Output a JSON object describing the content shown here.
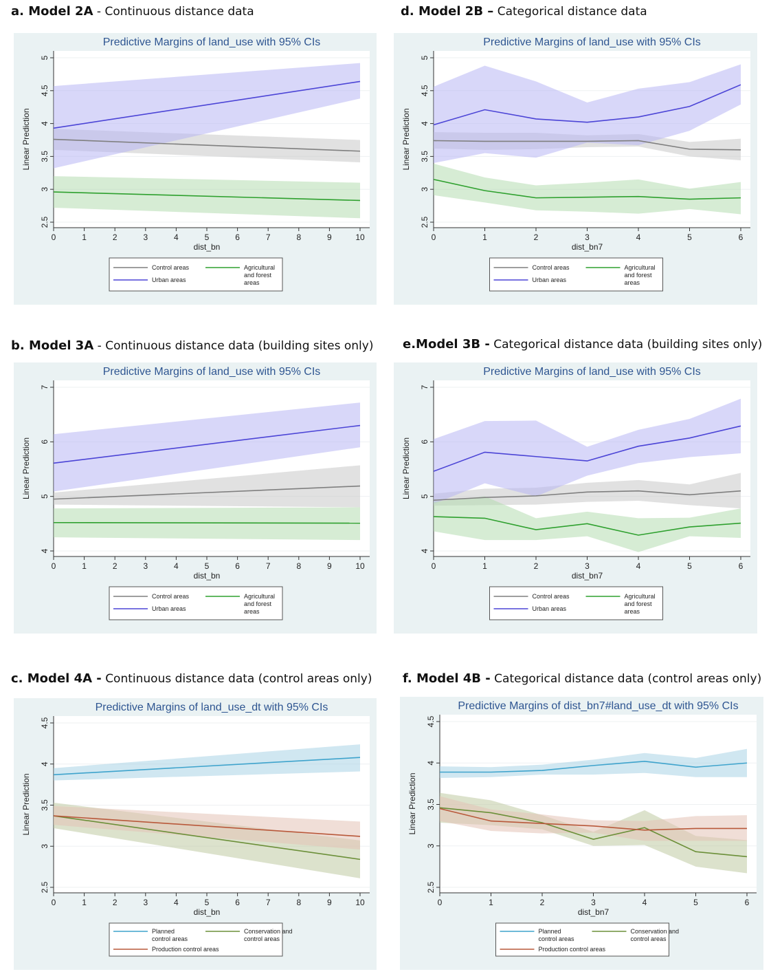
{
  "panels": [
    {
      "caption_label": "a. Model 2A",
      "caption_text": "- Continuous distance data",
      "chart_data": {
        "type": "line",
        "title": "Predictive Margins of land_use with 95% CIs",
        "xlabel": "dist_bn",
        "ylabel": "Linear Prediction",
        "x": [
          0,
          10
        ],
        "xticks": [
          "0",
          "1",
          "2",
          "3",
          "4",
          "5",
          "6",
          "7",
          "8",
          "9",
          "10"
        ],
        "xlim": [
          0,
          10
        ],
        "yticks": [
          "2.5",
          "3",
          "3.5",
          "4",
          "4.5",
          "5"
        ],
        "ylim": [
          2.5,
          5
        ],
        "series": [
          {
            "name": "Control areas",
            "color": "#7f7f7f",
            "band": "#c8c8c8",
            "values": [
              3.76,
              3.58
            ],
            "lower": [
              3.6,
              3.41
            ],
            "upper": [
              3.92,
              3.75
            ]
          },
          {
            "name": "Urban areas",
            "color": "#4b44d6",
            "band": "#b8b6f4",
            "values": [
              3.93,
              4.64
            ],
            "lower": [
              3.32,
              4.38
            ],
            "upper": [
              4.57,
              4.92
            ]
          },
          {
            "name": "Agricultural and forest areas",
            "color": "#2ea02e",
            "band": "#b5dcb0",
            "values": [
              2.96,
              2.83
            ],
            "lower": [
              2.72,
              2.56
            ],
            "upper": [
              3.2,
              3.1
            ]
          }
        ]
      },
      "legend": [
        {
          "label": "Control areas",
          "color": "#7f7f7f"
        },
        {
          "label": "Agricultural and forest areas",
          "color": "#2ea02e"
        },
        {
          "label": "Urban areas",
          "color": "#4b44d6"
        }
      ]
    },
    {
      "caption_label": "d. Model 2B –",
      "caption_text": "Categorical distance data",
      "chart_data": {
        "type": "line",
        "title": "Predictive Margins of land_use with 95% CIs",
        "xlabel": "dist_bn7",
        "ylabel": "Linear Prediction",
        "x": [
          0,
          1,
          2,
          3,
          4,
          5,
          6
        ],
        "xticks": [
          "0",
          "1",
          "2",
          "3",
          "4",
          "5",
          "6"
        ],
        "xlim": [
          0,
          6
        ],
        "yticks": [
          "2.5",
          "3",
          "3.5",
          "4",
          "4.5",
          "5"
        ],
        "ylim": [
          2.5,
          5
        ],
        "series": [
          {
            "name": "Control areas",
            "color": "#7f7f7f",
            "band": "#c8c8c8",
            "values": [
              3.74,
              3.73,
              3.73,
              3.73,
              3.74,
              3.61,
              3.6
            ],
            "lower": [
              3.62,
              3.6,
              3.61,
              3.64,
              3.65,
              3.5,
              3.44
            ],
            "upper": [
              3.87,
              3.86,
              3.86,
              3.82,
              3.84,
              3.72,
              3.77
            ]
          },
          {
            "name": "Urban areas",
            "color": "#4b44d6",
            "band": "#b8b6f4",
            "values": [
              3.98,
              4.21,
              4.07,
              4.02,
              4.1,
              4.26,
              4.59
            ],
            "lower": [
              3.4,
              3.55,
              3.48,
              3.71,
              3.67,
              3.89,
              4.29
            ],
            "upper": [
              4.56,
              4.88,
              4.64,
              4.32,
              4.53,
              4.63,
              4.9
            ]
          },
          {
            "name": "Agricultural and forest areas",
            "color": "#2ea02e",
            "band": "#b5dcb0",
            "values": [
              3.15,
              2.98,
              2.87,
              2.88,
              2.89,
              2.85,
              2.87
            ],
            "lower": [
              2.91,
              2.8,
              2.68,
              2.66,
              2.63,
              2.7,
              2.62
            ],
            "upper": [
              3.39,
              3.18,
              3.06,
              3.1,
              3.15,
              3.01,
              3.11
            ]
          }
        ]
      },
      "legend": [
        {
          "label": "Control areas",
          "color": "#7f7f7f"
        },
        {
          "label": "Agricultural and forest areas",
          "color": "#2ea02e"
        },
        {
          "label": "Urban areas",
          "color": "#4b44d6"
        }
      ]
    },
    {
      "caption_label": "b. Model 3A",
      "caption_text": "- Continuous distance data (building sites only)",
      "chart_data": {
        "type": "line",
        "title": "Predictive Margins of land_use with 95% CIs",
        "xlabel": "dist_bn",
        "ylabel": "Linear Prediction",
        "x": [
          0,
          10
        ],
        "xticks": [
          "0",
          "1",
          "2",
          "3",
          "4",
          "5",
          "6",
          "7",
          "8",
          "9",
          "10"
        ],
        "xlim": [
          0,
          10
        ],
        "yticks": [
          "4",
          "5",
          "6",
          "7"
        ],
        "ylim": [
          4,
          7
        ],
        "series": [
          {
            "name": "Control areas",
            "color": "#7f7f7f",
            "band": "#c8c8c8",
            "values": [
              4.95,
              5.19
            ],
            "lower": [
              4.85,
              4.8
            ],
            "upper": [
              5.07,
              5.57
            ]
          },
          {
            "name": "Urban areas",
            "color": "#4b44d6",
            "band": "#b8b6f4",
            "values": [
              5.61,
              6.3
            ],
            "lower": [
              5.09,
              5.9
            ],
            "upper": [
              6.14,
              6.72
            ]
          },
          {
            "name": "Agricultural and forest areas",
            "color": "#2ea02e",
            "band": "#b5dcb0",
            "values": [
              4.52,
              4.51
            ],
            "lower": [
              4.25,
              4.2
            ],
            "upper": [
              4.78,
              4.8
            ]
          }
        ]
      },
      "legend": [
        {
          "label": "Control areas",
          "color": "#7f7f7f"
        },
        {
          "label": "Agricultural and forest areas",
          "color": "#2ea02e"
        },
        {
          "label": "Urban areas",
          "color": "#4b44d6"
        }
      ]
    },
    {
      "caption_label": "e.Model 3B -",
      "caption_text": "Categorical distance data (building sites only)",
      "chart_data": {
        "type": "line",
        "title": "Predictive Margins of land_use with 95% CIs",
        "xlabel": "dist_bn7",
        "ylabel": "Linear Prediction",
        "x": [
          0,
          1,
          2,
          3,
          4,
          5,
          6
        ],
        "xticks": [
          "0",
          "1",
          "2",
          "3",
          "4",
          "5",
          "6"
        ],
        "xlim": [
          0,
          6
        ],
        "yticks": [
          "4",
          "5",
          "6",
          "7"
        ],
        "ylim": [
          4,
          7
        ],
        "series": [
          {
            "name": "Control areas",
            "color": "#7f7f7f",
            "band": "#c8c8c8",
            "values": [
              4.93,
              4.98,
              5.01,
              5.08,
              5.1,
              5.03,
              5.1
            ],
            "lower": [
              4.83,
              4.84,
              4.85,
              4.9,
              4.92,
              4.84,
              4.78
            ],
            "upper": [
              5.05,
              5.14,
              5.16,
              5.25,
              5.3,
              5.22,
              5.43
            ]
          },
          {
            "name": "Urban areas",
            "color": "#4b44d6",
            "band": "#b8b6f4",
            "values": [
              5.46,
              5.81,
              5.73,
              5.65,
              5.92,
              6.07,
              6.29
            ],
            "lower": [
              4.86,
              5.24,
              5.0,
              5.38,
              5.61,
              5.72,
              5.79
            ],
            "upper": [
              6.05,
              6.38,
              6.39,
              5.91,
              6.22,
              6.42,
              6.79
            ]
          },
          {
            "name": "Agricultural and forest areas",
            "color": "#2ea02e",
            "band": "#b5dcb0",
            "values": [
              4.63,
              4.6,
              4.39,
              4.5,
              4.29,
              4.44,
              4.51
            ],
            "lower": [
              4.36,
              4.2,
              4.2,
              4.27,
              3.98,
              4.27,
              4.24
            ],
            "upper": [
              4.9,
              5.0,
              4.6,
              4.72,
              4.6,
              4.61,
              4.78
            ]
          }
        ]
      },
      "legend": [
        {
          "label": "Control areas",
          "color": "#7f7f7f"
        },
        {
          "label": "Agricultural and forest areas",
          "color": "#2ea02e"
        },
        {
          "label": "Urban areas",
          "color": "#4b44d6"
        }
      ]
    },
    {
      "caption_label": "c. Model 4A -",
      "caption_text": "Continuous distance data (control areas only)",
      "chart_data": {
        "type": "line",
        "title": "Predictive Margins of land_use_dt with 95% CIs",
        "xlabel": "dist_bn",
        "ylabel": "Linear Prediction",
        "x": [
          0,
          10
        ],
        "xticks": [
          "0",
          "1",
          "2",
          "3",
          "4",
          "5",
          "6",
          "7",
          "8",
          "9",
          "10"
        ],
        "xlim": [
          0,
          10
        ],
        "yticks": [
          "2.5",
          "3",
          "3.5",
          "4",
          "4.5"
        ],
        "ylim": [
          2.5,
          4.5
        ],
        "series": [
          {
            "name": "Planned control areas",
            "color": "#3ea3cc",
            "band": "#a9d4e6",
            "values": [
              3.87,
              4.08
            ],
            "lower": [
              3.8,
              3.91
            ],
            "upper": [
              3.95,
              4.24
            ]
          },
          {
            "name": "Conservation and control areas",
            "color": "#6b8f38",
            "band": "#bfcba3",
            "values": [
              3.37,
              2.84
            ],
            "lower": [
              3.22,
              2.61
            ],
            "upper": [
              3.53,
              3.07
            ]
          },
          {
            "name": "Production control areas",
            "color": "#b8583a",
            "band": "#e3c3b6",
            "values": [
              3.37,
              3.12
            ],
            "lower": [
              3.26,
              2.96
            ],
            "upper": [
              3.49,
              3.3
            ]
          }
        ]
      },
      "legend": [
        {
          "label": "Planned control areas",
          "color": "#3ea3cc"
        },
        {
          "label": "Conservation and control areas",
          "color": "#6b8f38"
        },
        {
          "label": "Production control areas",
          "color": "#b8583a"
        }
      ]
    },
    {
      "caption_label": "f. Model 4B -",
      "caption_text": "Categorical distance data (control areas only)",
      "chart_data": {
        "type": "line",
        "title": "Predictive Margins of dist_bn7#land_use_dt with 95% CIs",
        "xlabel": "dist_bn7",
        "ylabel": "Linear Prediction",
        "x": [
          0,
          1,
          2,
          3,
          4,
          5,
          6
        ],
        "xticks": [
          "0",
          "1",
          "2",
          "3",
          "4",
          "5",
          "6"
        ],
        "xlim": [
          0,
          6
        ],
        "yticks": [
          "2.5",
          "3",
          "3.5",
          "4",
          "4.5"
        ],
        "ylim": [
          2.5,
          4.5
        ],
        "series": [
          {
            "name": "Planned control areas",
            "color": "#3ea3cc",
            "band": "#a9d4e6",
            "values": [
              3.89,
              3.89,
              3.91,
              3.97,
              4.02,
              3.95,
              4.0
            ],
            "lower": [
              3.82,
              3.83,
              3.86,
              3.86,
              3.88,
              3.83,
              3.83
            ],
            "upper": [
              3.96,
              3.95,
              3.98,
              4.04,
              4.12,
              4.06,
              4.17
            ]
          },
          {
            "name": "Conservation and control areas",
            "color": "#6b8f38",
            "band": "#bfcba3",
            "values": [
              3.46,
              3.4,
              3.28,
              3.08,
              3.22,
              2.93,
              2.87
            ],
            "lower": [
              3.28,
              3.25,
              3.2,
              3.0,
              3.01,
              2.75,
              2.67
            ],
            "upper": [
              3.64,
              3.55,
              3.37,
              3.17,
              3.43,
              3.12,
              3.07
            ]
          },
          {
            "name": "Production control areas",
            "color": "#b8583a",
            "band": "#e3c3b6",
            "values": [
              3.45,
              3.3,
              3.27,
              3.24,
              3.19,
              3.21,
              3.21
            ],
            "lower": [
              3.3,
              3.18,
              3.15,
              3.16,
              3.06,
              3.06,
              3.06
            ],
            "upper": [
              3.6,
              3.44,
              3.38,
              3.31,
              3.3,
              3.36,
              3.37
            ]
          }
        ]
      },
      "legend": [
        {
          "label": "Planned control areas",
          "color": "#3ea3cc"
        },
        {
          "label": "Conservation and control areas",
          "color": "#6b8f38"
        },
        {
          "label": "Production control areas",
          "color": "#b8583a"
        }
      ]
    }
  ]
}
